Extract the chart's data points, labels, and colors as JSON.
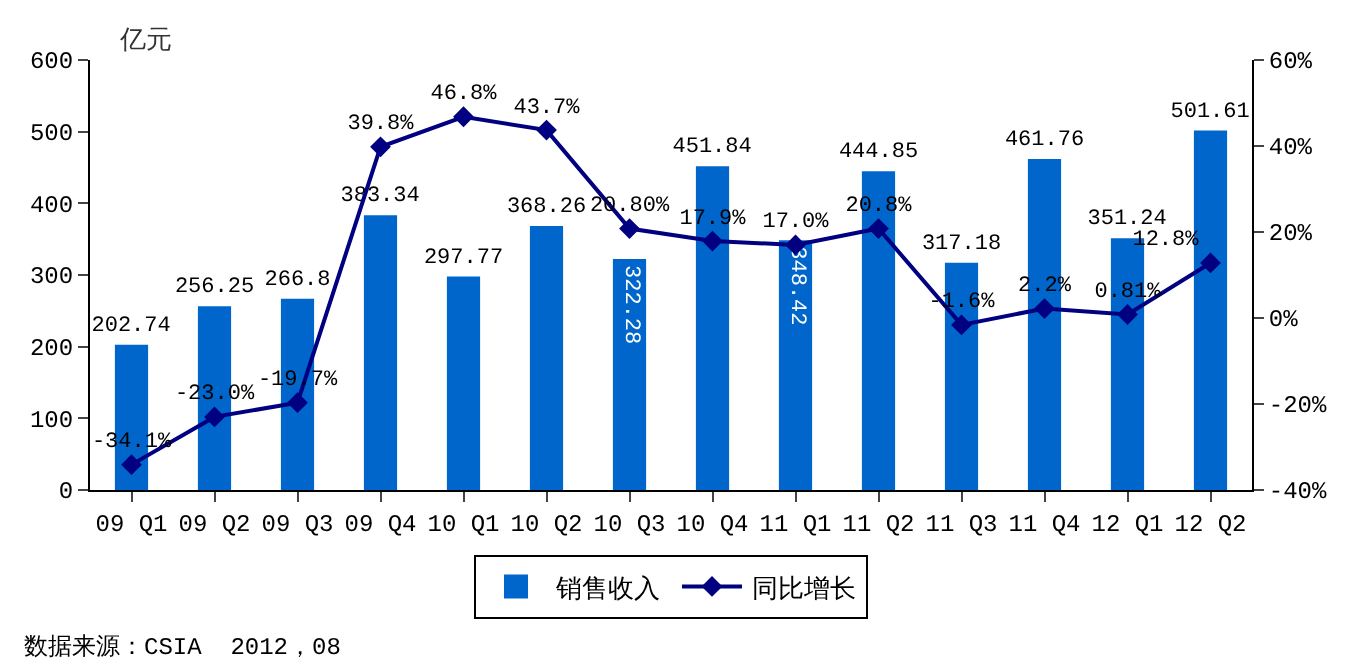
{
  "chart_data": {
    "type": "bar",
    "ylabel": "亿元",
    "categories": [
      "09 Q1",
      "09 Q2",
      "09 Q3",
      "09 Q4",
      "10 Q1",
      "10 Q2",
      "10 Q3",
      "10 Q4",
      "11 Q1",
      "11 Q2",
      "11 Q3",
      "11 Q4",
      "12 Q1",
      "12 Q2"
    ],
    "series": [
      {
        "name": "销售收入",
        "color": "#0066cc",
        "values": [
          202.74,
          256.25,
          266.8,
          383.34,
          297.77,
          368.26,
          322.28,
          451.84,
          348.42,
          444.85,
          317.18,
          461.76,
          351.24,
          501.61
        ],
        "value_labels": [
          "202.74",
          "256.25",
          "266.8",
          "383.34",
          "297.77",
          "368.26",
          "322.28",
          "451.84",
          "348.42",
          "444.85",
          "317.18",
          "461.76",
          "351.24",
          "501.61"
        ]
      },
      {
        "name": "同比增长",
        "type": "line",
        "axis": "y2",
        "color": "#000080",
        "marker": "diamond",
        "values": [
          -34.1,
          -23.0,
          -19.7,
          39.8,
          46.8,
          43.7,
          20.8,
          17.9,
          17.0,
          20.8,
          -1.6,
          2.2,
          0.81,
          12.8
        ],
        "value_labels": [
          "-34.1%",
          "-23.0%",
          "-19.7%",
          "39.8%",
          "46.8%",
          "43.7%",
          "20.80%",
          "17.9%",
          "17.0%",
          "20.8%",
          "-1.6%",
          "2.2%",
          "0.81%",
          "12.8%"
        ]
      }
    ],
    "ylim": [
      0,
      600
    ],
    "yticks": [
      0,
      100,
      200,
      300,
      400,
      500,
      600
    ],
    "y2lim": [
      -40,
      60
    ],
    "y2ticks": [
      {
        "value": -40,
        "label": "-40%"
      },
      {
        "value": -20,
        "label": "-20%"
      },
      {
        "value": 0,
        "label": "0%"
      },
      {
        "value": 20,
        "label": "20%"
      },
      {
        "value": 40,
        "label": "40%"
      },
      {
        "value": 60,
        "label": "60%"
      }
    ],
    "grid": false,
    "legend": "bottom",
    "annotations": [
      "数据来源：CSIA  2012，08"
    ]
  }
}
